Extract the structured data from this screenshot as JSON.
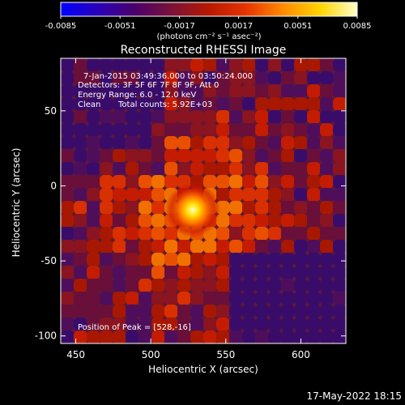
{
  "footer_timestamp": "17-May-2022 18:15",
  "colorbar": {
    "unit_label": "(photons cm⁻² s⁻¹ asec⁻²)",
    "tick_labels": [
      "-0.0085",
      "-0.0051",
      "-0.0017",
      "0.0017",
      "0.0051",
      "0.0085"
    ],
    "range": [
      -0.0085,
      0.0085
    ],
    "colormap": [
      "#0000ff",
      "#2a00b8",
      "#4a006a",
      "#7a1238",
      "#b81800",
      "#e63400",
      "#ff8a00",
      "#ffd400",
      "#ffffc8"
    ]
  },
  "info": {
    "time_range": "7-Jan-2015 03:49:36.000 to 03:50:24.000",
    "detectors": "Detectors: 3F 5F 6F 7F 8F 9F, Att 0",
    "energy_range": "Energy Range: 6.0 - 12.0 keV",
    "clean_label": "Clean",
    "total_counts": "Total counts: 5.92E+03",
    "peak_position": "Position of Peak = [528,-16]"
  },
  "chart_data": {
    "type": "heatmap",
    "title": "Reconstructed RHESSI Image",
    "xlabel": "Heliocentric X (arcsec)",
    "ylabel": "Heliocentric Y (arcsec)",
    "xlim": [
      440,
      630
    ],
    "ylim": [
      -105,
      85
    ],
    "x_ticks": [
      450,
      500,
      550,
      600
    ],
    "y_ticks": [
      50,
      0,
      -50,
      -100
    ],
    "peak": {
      "x": 528,
      "y": -16,
      "value": 0.0085
    },
    "grid": false
  }
}
